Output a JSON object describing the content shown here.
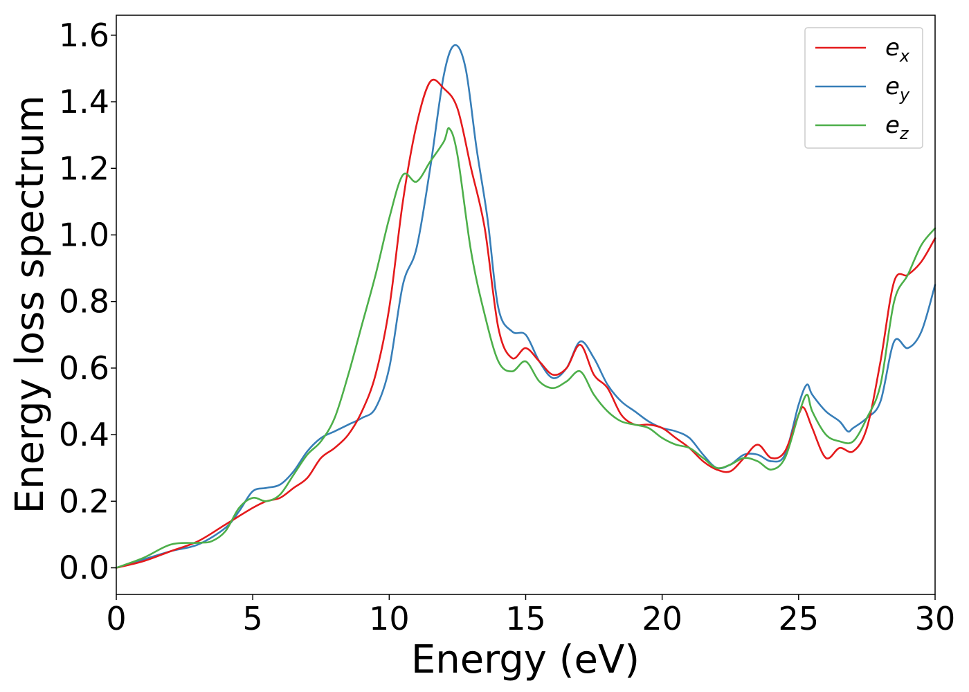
{
  "chart_data": {
    "type": "line",
    "xlabel": "Energy (eV)",
    "ylabel": "Energy loss spectrum",
    "xlim": [
      0,
      30
    ],
    "ylim": [
      -0.08,
      1.66
    ],
    "xticks": [
      0,
      5,
      10,
      15,
      20,
      25,
      30
    ],
    "xtick_labels": [
      "0",
      "5",
      "10",
      "15",
      "20",
      "25",
      "30"
    ],
    "yticks": [
      0.0,
      0.2,
      0.4,
      0.6,
      0.8,
      1.0,
      1.2,
      1.4,
      1.6
    ],
    "ytick_labels": [
      "0.0",
      "0.2",
      "0.4",
      "0.6",
      "0.8",
      "1.0",
      "1.2",
      "1.4",
      "1.6"
    ],
    "grid": false,
    "legend_position": "top-right",
    "series": [
      {
        "name": "e_x",
        "legend_base": "e",
        "legend_sub": "x",
        "color": "#e41a1c",
        "points": [
          [
            0,
            0.0
          ],
          [
            1,
            0.02
          ],
          [
            2,
            0.05
          ],
          [
            3,
            0.08
          ],
          [
            4,
            0.13
          ],
          [
            5,
            0.18
          ],
          [
            5.5,
            0.2
          ],
          [
            6,
            0.21
          ],
          [
            6.5,
            0.24
          ],
          [
            7,
            0.27
          ],
          [
            7.5,
            0.33
          ],
          [
            8,
            0.36
          ],
          [
            8.5,
            0.4
          ],
          [
            9,
            0.47
          ],
          [
            9.5,
            0.58
          ],
          [
            10,
            0.78
          ],
          [
            10.5,
            1.1
          ],
          [
            11,
            1.33
          ],
          [
            11.5,
            1.46
          ],
          [
            12,
            1.44
          ],
          [
            12.5,
            1.38
          ],
          [
            13,
            1.2
          ],
          [
            13.5,
            1.02
          ],
          [
            14,
            0.72
          ],
          [
            14.5,
            0.63
          ],
          [
            15,
            0.66
          ],
          [
            15.5,
            0.62
          ],
          [
            16,
            0.58
          ],
          [
            16.5,
            0.6
          ],
          [
            17,
            0.67
          ],
          [
            17.5,
            0.58
          ],
          [
            18,
            0.54
          ],
          [
            18.5,
            0.46
          ],
          [
            19,
            0.43
          ],
          [
            19.5,
            0.43
          ],
          [
            20,
            0.42
          ],
          [
            20.5,
            0.39
          ],
          [
            21,
            0.36
          ],
          [
            21.5,
            0.32
          ],
          [
            22,
            0.295
          ],
          [
            22.5,
            0.29
          ],
          [
            23,
            0.33
          ],
          [
            23.5,
            0.37
          ],
          [
            24,
            0.33
          ],
          [
            24.5,
            0.35
          ],
          [
            25,
            0.46
          ],
          [
            25.2,
            0.48
          ],
          [
            25.5,
            0.42
          ],
          [
            26,
            0.33
          ],
          [
            26.5,
            0.36
          ],
          [
            27,
            0.35
          ],
          [
            27.5,
            0.42
          ],
          [
            28,
            0.62
          ],
          [
            28.5,
            0.86
          ],
          [
            29,
            0.88
          ],
          [
            29.5,
            0.92
          ],
          [
            30,
            0.99
          ]
        ]
      },
      {
        "name": "e_y",
        "legend_base": "e",
        "legend_sub": "y",
        "color": "#377eb8",
        "points": [
          [
            0,
            0.0
          ],
          [
            1,
            0.025
          ],
          [
            2,
            0.05
          ],
          [
            3,
            0.07
          ],
          [
            4,
            0.12
          ],
          [
            4.5,
            0.17
          ],
          [
            5,
            0.23
          ],
          [
            5.5,
            0.24
          ],
          [
            6,
            0.25
          ],
          [
            6.5,
            0.29
          ],
          [
            7,
            0.35
          ],
          [
            7.5,
            0.39
          ],
          [
            8,
            0.41
          ],
          [
            8.5,
            0.43
          ],
          [
            9,
            0.45
          ],
          [
            9.5,
            0.48
          ],
          [
            10,
            0.6
          ],
          [
            10.5,
            0.85
          ],
          [
            11,
            0.96
          ],
          [
            11.5,
            1.2
          ],
          [
            12,
            1.48
          ],
          [
            12.4,
            1.57
          ],
          [
            12.8,
            1.5
          ],
          [
            13.2,
            1.26
          ],
          [
            13.6,
            1.05
          ],
          [
            14,
            0.78
          ],
          [
            14.5,
            0.71
          ],
          [
            15,
            0.7
          ],
          [
            15.5,
            0.62
          ],
          [
            16,
            0.57
          ],
          [
            16.5,
            0.6
          ],
          [
            17,
            0.68
          ],
          [
            17.5,
            0.63
          ],
          [
            18,
            0.55
          ],
          [
            18.5,
            0.5
          ],
          [
            19,
            0.47
          ],
          [
            19.5,
            0.44
          ],
          [
            20,
            0.42
          ],
          [
            20.5,
            0.41
          ],
          [
            21,
            0.39
          ],
          [
            21.5,
            0.34
          ],
          [
            22,
            0.3
          ],
          [
            22.5,
            0.31
          ],
          [
            23,
            0.34
          ],
          [
            23.5,
            0.34
          ],
          [
            24,
            0.32
          ],
          [
            24.5,
            0.34
          ],
          [
            25,
            0.49
          ],
          [
            25.3,
            0.55
          ],
          [
            25.5,
            0.52
          ],
          [
            26,
            0.47
          ],
          [
            26.5,
            0.44
          ],
          [
            26.8,
            0.41
          ],
          [
            27,
            0.42
          ],
          [
            27.5,
            0.45
          ],
          [
            28,
            0.5
          ],
          [
            28.5,
            0.68
          ],
          [
            29,
            0.66
          ],
          [
            29.5,
            0.71
          ],
          [
            30,
            0.85
          ]
        ]
      },
      {
        "name": "e_z",
        "legend_base": "e",
        "legend_sub": "z",
        "color": "#4daf4a",
        "points": [
          [
            0,
            0.0
          ],
          [
            1,
            0.03
          ],
          [
            2,
            0.07
          ],
          [
            3,
            0.075
          ],
          [
            3.5,
            0.08
          ],
          [
            4,
            0.11
          ],
          [
            4.5,
            0.18
          ],
          [
            5,
            0.21
          ],
          [
            5.5,
            0.2
          ],
          [
            6,
            0.22
          ],
          [
            6.5,
            0.28
          ],
          [
            7,
            0.34
          ],
          [
            7.5,
            0.38
          ],
          [
            8,
            0.45
          ],
          [
            8.5,
            0.58
          ],
          [
            9,
            0.73
          ],
          [
            9.5,
            0.88
          ],
          [
            10,
            1.05
          ],
          [
            10.5,
            1.18
          ],
          [
            11,
            1.16
          ],
          [
            11.5,
            1.22
          ],
          [
            12,
            1.28
          ],
          [
            12.2,
            1.32
          ],
          [
            12.5,
            1.24
          ],
          [
            13,
            0.95
          ],
          [
            13.5,
            0.76
          ],
          [
            14,
            0.62
          ],
          [
            14.5,
            0.59
          ],
          [
            15,
            0.62
          ],
          [
            15.5,
            0.56
          ],
          [
            16,
            0.54
          ],
          [
            16.5,
            0.56
          ],
          [
            17,
            0.59
          ],
          [
            17.5,
            0.52
          ],
          [
            18,
            0.47
          ],
          [
            18.5,
            0.44
          ],
          [
            19,
            0.43
          ],
          [
            19.5,
            0.42
          ],
          [
            20,
            0.39
          ],
          [
            20.5,
            0.37
          ],
          [
            21,
            0.36
          ],
          [
            21.5,
            0.33
          ],
          [
            22,
            0.3
          ],
          [
            22.5,
            0.31
          ],
          [
            23,
            0.33
          ],
          [
            23.5,
            0.32
          ],
          [
            24,
            0.295
          ],
          [
            24.5,
            0.33
          ],
          [
            25,
            0.46
          ],
          [
            25.3,
            0.52
          ],
          [
            25.5,
            0.47
          ],
          [
            26,
            0.4
          ],
          [
            26.5,
            0.38
          ],
          [
            27,
            0.38
          ],
          [
            27.5,
            0.45
          ],
          [
            28,
            0.55
          ],
          [
            28.5,
            0.8
          ],
          [
            29,
            0.88
          ],
          [
            29.5,
            0.97
          ],
          [
            30,
            1.02
          ]
        ]
      }
    ]
  }
}
